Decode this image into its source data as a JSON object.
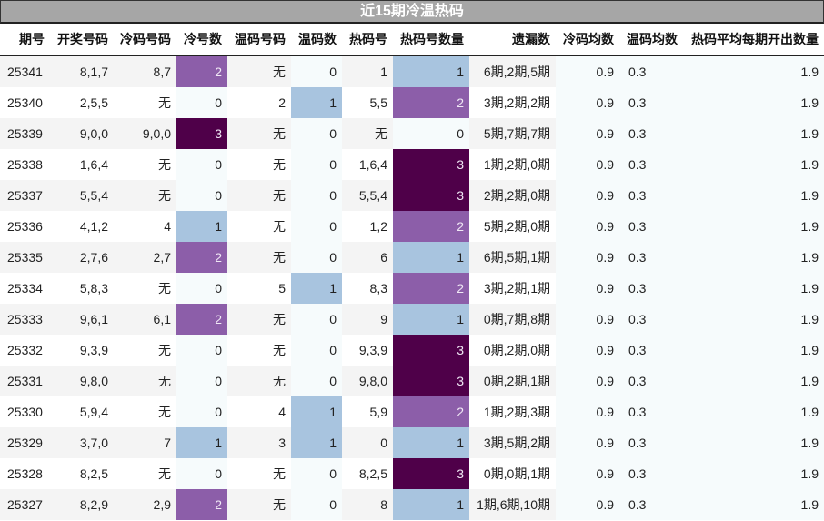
{
  "title": "近15期冷温热码",
  "colors": {
    "title_bg": "#a6a6a6",
    "level_0": "#f6fbfc",
    "level_1": "#a8c4df",
    "level_2": "#8c5ea9",
    "level_3": "#4f0049"
  },
  "headers": [
    "期号",
    "开奖号码",
    "冷码号码",
    "冷号数",
    "温码号码",
    "温码数",
    "热码号",
    "热码号数量",
    "遗漏数",
    "冷码均数",
    "温码均数",
    "热码平均每期开出数量"
  ],
  "rows": [
    {
      "issue": "25341",
      "draw": "8,1,7",
      "cold": "8,7",
      "cold_n": "2",
      "warm": "无",
      "warm_n": "0",
      "hot": "1",
      "hot_n": "1",
      "miss": "6期,2期,5期",
      "cold_avg": "0.9",
      "warm_avg": "0.3",
      "hot_avg": "1.9"
    },
    {
      "issue": "25340",
      "draw": "2,5,5",
      "cold": "无",
      "cold_n": "0",
      "warm": "2",
      "warm_n": "1",
      "hot": "5,5",
      "hot_n": "2",
      "miss": "3期,2期,2期",
      "cold_avg": "0.9",
      "warm_avg": "0.3",
      "hot_avg": "1.9"
    },
    {
      "issue": "25339",
      "draw": "9,0,0",
      "cold": "9,0,0",
      "cold_n": "3",
      "warm": "无",
      "warm_n": "0",
      "hot": "无",
      "hot_n": "0",
      "miss": "5期,7期,7期",
      "cold_avg": "0.9",
      "warm_avg": "0.3",
      "hot_avg": "1.9"
    },
    {
      "issue": "25338",
      "draw": "1,6,4",
      "cold": "无",
      "cold_n": "0",
      "warm": "无",
      "warm_n": "0",
      "hot": "1,6,4",
      "hot_n": "3",
      "miss": "1期,2期,0期",
      "cold_avg": "0.9",
      "warm_avg": "0.3",
      "hot_avg": "1.9"
    },
    {
      "issue": "25337",
      "draw": "5,5,4",
      "cold": "无",
      "cold_n": "0",
      "warm": "无",
      "warm_n": "0",
      "hot": "5,5,4",
      "hot_n": "3",
      "miss": "2期,2期,0期",
      "cold_avg": "0.9",
      "warm_avg": "0.3",
      "hot_avg": "1.9"
    },
    {
      "issue": "25336",
      "draw": "4,1,2",
      "cold": "4",
      "cold_n": "1",
      "warm": "无",
      "warm_n": "0",
      "hot": "1,2",
      "hot_n": "2",
      "miss": "5期,2期,0期",
      "cold_avg": "0.9",
      "warm_avg": "0.3",
      "hot_avg": "1.9"
    },
    {
      "issue": "25335",
      "draw": "2,7,6",
      "cold": "2,7",
      "cold_n": "2",
      "warm": "无",
      "warm_n": "0",
      "hot": "6",
      "hot_n": "1",
      "miss": "6期,5期,1期",
      "cold_avg": "0.9",
      "warm_avg": "0.3",
      "hot_avg": "1.9"
    },
    {
      "issue": "25334",
      "draw": "5,8,3",
      "cold": "无",
      "cold_n": "0",
      "warm": "5",
      "warm_n": "1",
      "hot": "8,3",
      "hot_n": "2",
      "miss": "3期,2期,1期",
      "cold_avg": "0.9",
      "warm_avg": "0.3",
      "hot_avg": "1.9"
    },
    {
      "issue": "25333",
      "draw": "9,6,1",
      "cold": "6,1",
      "cold_n": "2",
      "warm": "无",
      "warm_n": "0",
      "hot": "9",
      "hot_n": "1",
      "miss": "0期,7期,8期",
      "cold_avg": "0.9",
      "warm_avg": "0.3",
      "hot_avg": "1.9"
    },
    {
      "issue": "25332",
      "draw": "9,3,9",
      "cold": "无",
      "cold_n": "0",
      "warm": "无",
      "warm_n": "0",
      "hot": "9,3,9",
      "hot_n": "3",
      "miss": "0期,2期,0期",
      "cold_avg": "0.9",
      "warm_avg": "0.3",
      "hot_avg": "1.9"
    },
    {
      "issue": "25331",
      "draw": "9,8,0",
      "cold": "无",
      "cold_n": "0",
      "warm": "无",
      "warm_n": "0",
      "hot": "9,8,0",
      "hot_n": "3",
      "miss": "0期,2期,1期",
      "cold_avg": "0.9",
      "warm_avg": "0.3",
      "hot_avg": "1.9"
    },
    {
      "issue": "25330",
      "draw": "5,9,4",
      "cold": "无",
      "cold_n": "0",
      "warm": "4",
      "warm_n": "1",
      "hot": "5,9",
      "hot_n": "2",
      "miss": "1期,2期,3期",
      "cold_avg": "0.9",
      "warm_avg": "0.3",
      "hot_avg": "1.9"
    },
    {
      "issue": "25329",
      "draw": "3,7,0",
      "cold": "7",
      "cold_n": "1",
      "warm": "3",
      "warm_n": "1",
      "hot": "0",
      "hot_n": "1",
      "miss": "3期,5期,2期",
      "cold_avg": "0.9",
      "warm_avg": "0.3",
      "hot_avg": "1.9"
    },
    {
      "issue": "25328",
      "draw": "8,2,5",
      "cold": "无",
      "cold_n": "0",
      "warm": "无",
      "warm_n": "0",
      "hot": "8,2,5",
      "hot_n": "3",
      "miss": "0期,0期,1期",
      "cold_avg": "0.9",
      "warm_avg": "0.3",
      "hot_avg": "1.9"
    },
    {
      "issue": "25327",
      "draw": "8,2,9",
      "cold": "2,9",
      "cold_n": "2",
      "warm": "无",
      "warm_n": "0",
      "hot": "8",
      "hot_n": "1",
      "miss": "1期,6期,10期",
      "cold_avg": "0.9",
      "warm_avg": "0.3",
      "hot_avg": "1.9"
    }
  ]
}
